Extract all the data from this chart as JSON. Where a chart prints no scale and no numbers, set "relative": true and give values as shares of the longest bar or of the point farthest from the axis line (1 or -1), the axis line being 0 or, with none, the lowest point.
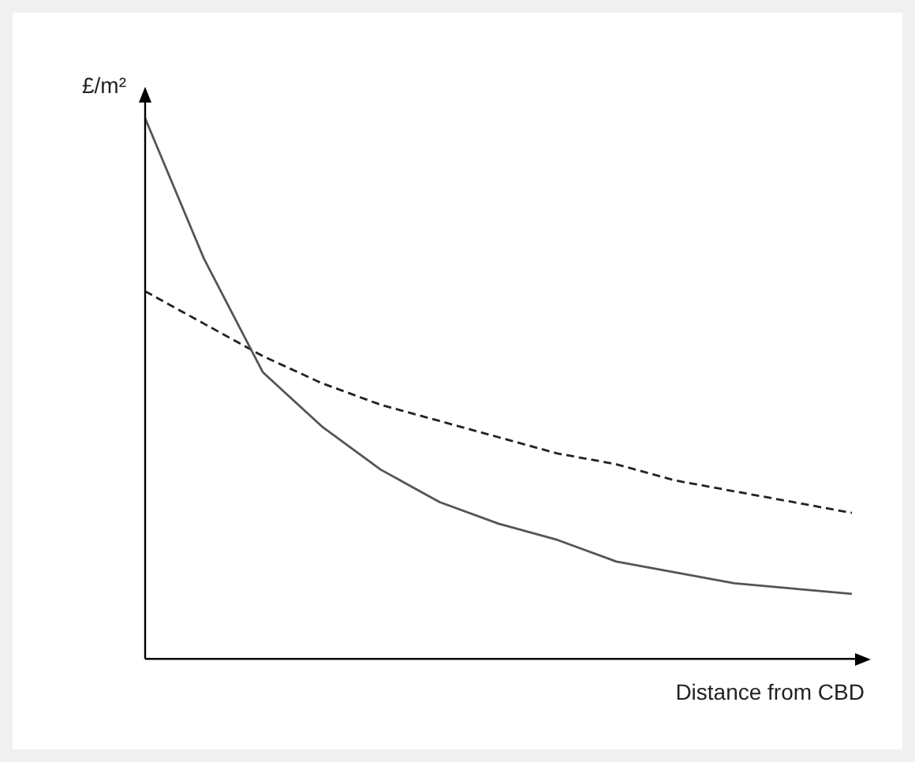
{
  "chart_data": {
    "type": "line",
    "relative": true,
    "xlabel": "Distance from CBD",
    "ylabel": "£/m²",
    "legend": false,
    "grid": false,
    "marker": "none",
    "categories": [
      null,
      null,
      null,
      null,
      null,
      null,
      null,
      null,
      null,
      null,
      null,
      null,
      null
    ],
    "series": [
      {
        "color": "#555555",
        "line_style": "solid",
        "values": [
          1,
          0.74,
          0.53,
          0.43,
          0.35,
          0.29,
          0.25,
          0.22,
          0.18,
          0.16,
          0.14,
          0.13,
          0.12
        ]
      },
      {
        "color": "#222222",
        "line_style": "dashed",
        "values": [
          0.68,
          0.62,
          0.56,
          0.51,
          0.47,
          0.44,
          0.41,
          0.38,
          0.36,
          0.33,
          0.31,
          0.29,
          0.27
        ]
      }
    ]
  }
}
